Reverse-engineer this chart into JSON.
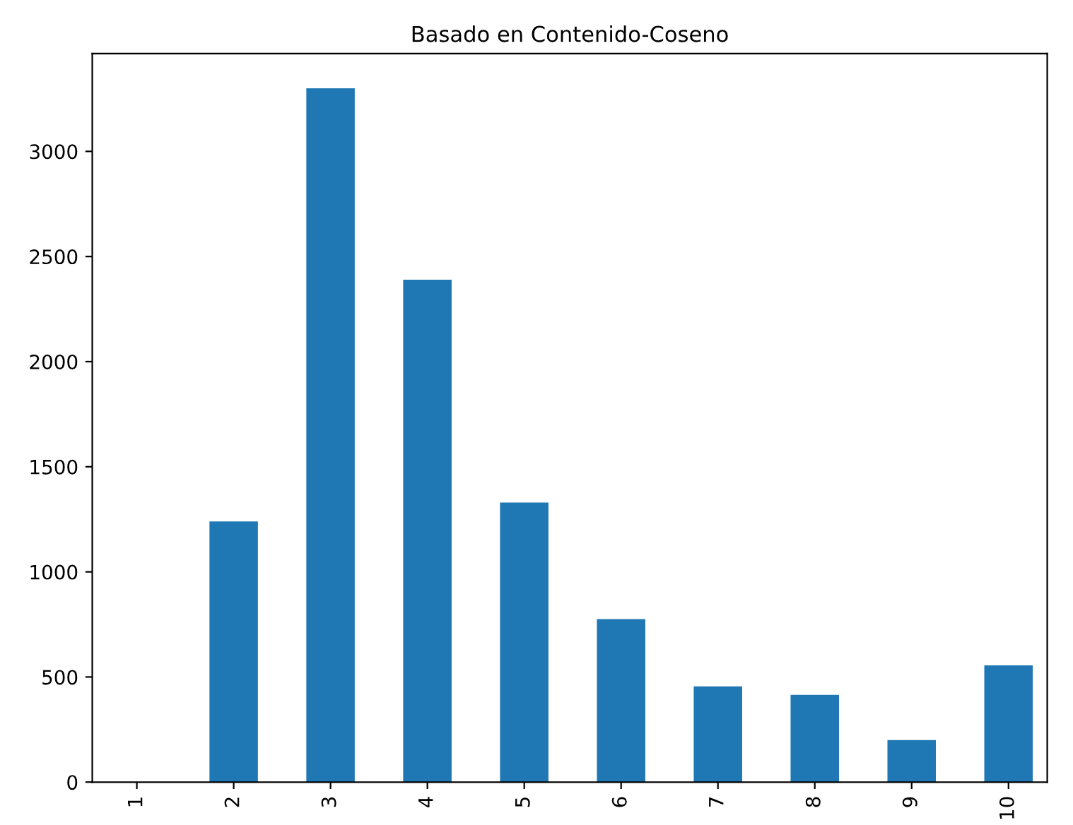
{
  "chart_data": {
    "type": "bar",
    "title": "Basado en Contenido-Coseno",
    "categories": [
      "1",
      "2",
      "3",
      "4",
      "5",
      "6",
      "7",
      "8",
      "9",
      "10"
    ],
    "values": [
      0,
      1240,
      3300,
      2390,
      1330,
      775,
      455,
      415,
      200,
      555
    ],
    "color": "#1f77b4",
    "ylim": [
      0,
      3465
    ],
    "yticks": [
      0,
      500,
      1000,
      1500,
      2000,
      2500,
      3000
    ],
    "grid": false,
    "legend": false
  }
}
